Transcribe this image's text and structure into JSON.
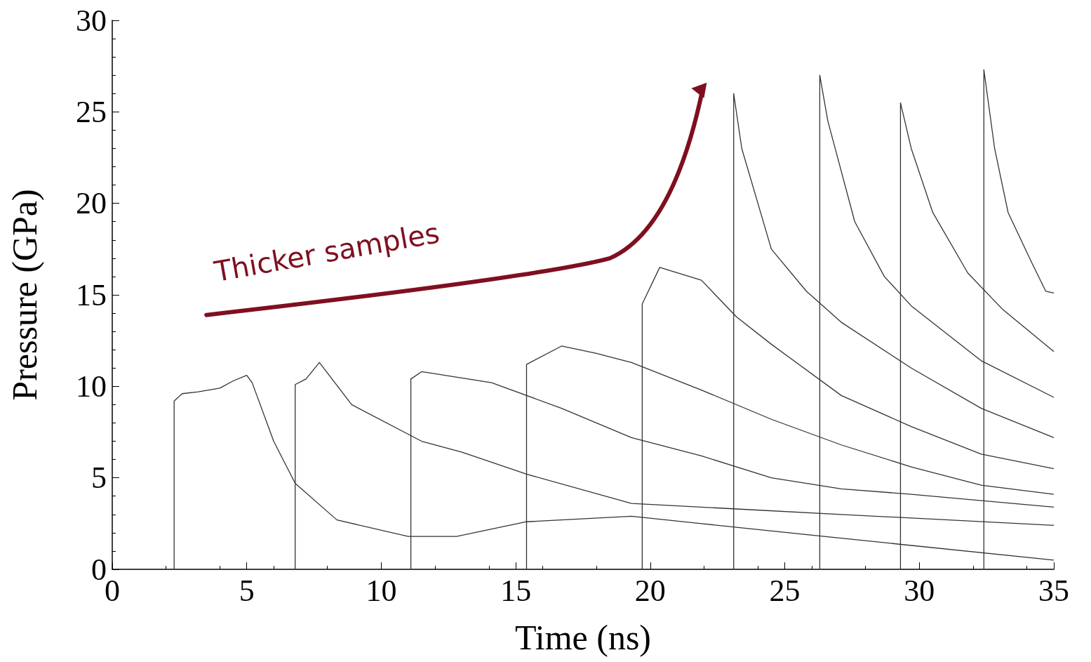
{
  "chart_data": {
    "type": "line",
    "xlabel": "Time (ns)",
    "ylabel": "Pressure (GPa)",
    "xlim": [
      0,
      35
    ],
    "ylim": [
      0,
      30
    ],
    "xticks": [
      0,
      5,
      10,
      15,
      20,
      25,
      30,
      35
    ],
    "yticks": [
      0,
      5,
      10,
      15,
      20,
      25,
      30
    ],
    "grid": false,
    "marker": "none",
    "line_style": "solid",
    "annotations": [
      "Thicker samples"
    ],
    "series": [
      {
        "color": "#333333",
        "x": [
          2.3,
          2.3,
          2.6,
          3.2,
          4,
          4.5,
          5,
          5.2,
          6,
          6.8,
          8.35,
          11,
          12.8,
          15.4,
          19.3,
          21.9,
          27.1,
          35
        ],
        "values": [
          0,
          9.2,
          9.6,
          9.7,
          9.9,
          10.3,
          10.6,
          10.2,
          7,
          4.7,
          2.7,
          1.8,
          1.8,
          2.6,
          2.9,
          2.5,
          1.7,
          0.5
        ]
      },
      {
        "color": "#333333",
        "x": [
          6.8,
          6.8,
          7.2,
          7.7,
          8.9,
          11.5,
          13,
          15.4,
          19.3,
          23.2,
          27.1,
          35
        ],
        "values": [
          0,
          10.1,
          10.4,
          11.3,
          9,
          7,
          6.4,
          5.2,
          3.6,
          3.3,
          3,
          2.4
        ]
      },
      {
        "color": "#333333",
        "x": [
          11.1,
          11.1,
          11.5,
          14.1,
          16.7,
          19.3,
          21.9,
          24.5,
          27.1,
          29.7,
          35
        ],
        "values": [
          0,
          10.4,
          10.8,
          10.2,
          8.8,
          7.2,
          6.2,
          5,
          4.4,
          4.1,
          3.4
        ]
      },
      {
        "color": "#333333",
        "x": [
          15.4,
          15.4,
          16.7,
          18,
          19.3,
          21.9,
          24.5,
          27.1,
          29.7,
          32.3,
          35
        ],
        "values": [
          0,
          11.2,
          12.2,
          11.8,
          11.3,
          9.8,
          8.2,
          6.8,
          5.6,
          4.6,
          4.1
        ]
      },
      {
        "color": "#333333",
        "x": [
          19.7,
          19.7,
          20.35,
          21.9,
          23.2,
          24.5,
          27.1,
          29.7,
          32.3,
          35
        ],
        "values": [
          0,
          14.5,
          16.5,
          15.8,
          13.8,
          12.3,
          9.5,
          7.8,
          6.3,
          5.5
        ]
      },
      {
        "color": "#333333",
        "x": [
          23.1,
          23.1,
          23.4,
          24.5,
          25.8,
          27.1,
          29.7,
          32.3,
          35
        ],
        "values": [
          0,
          26,
          23,
          17.5,
          15.2,
          13.5,
          11,
          8.8,
          7.2
        ]
      },
      {
        "color": "#333333",
        "x": [
          26.3,
          26.3,
          26.6,
          27.6,
          28.7,
          29.7,
          32.3,
          35
        ],
        "values": [
          0,
          27,
          24.5,
          19,
          16,
          14.4,
          11.4,
          9.4
        ]
      },
      {
        "color": "#333333",
        "x": [
          29.3,
          29.3,
          29.7,
          30.5,
          31.8,
          33.1,
          35
        ],
        "values": [
          0,
          25.5,
          23,
          19.5,
          16.2,
          14.2,
          11.9
        ]
      },
      {
        "color": "#333333",
        "x": [
          32.4,
          32.4,
          32.8,
          33.3,
          34.2,
          34.7,
          35
        ],
        "values": [
          0,
          27.3,
          23,
          19.5,
          16.7,
          15.2,
          15.1
        ]
      }
    ]
  }
}
